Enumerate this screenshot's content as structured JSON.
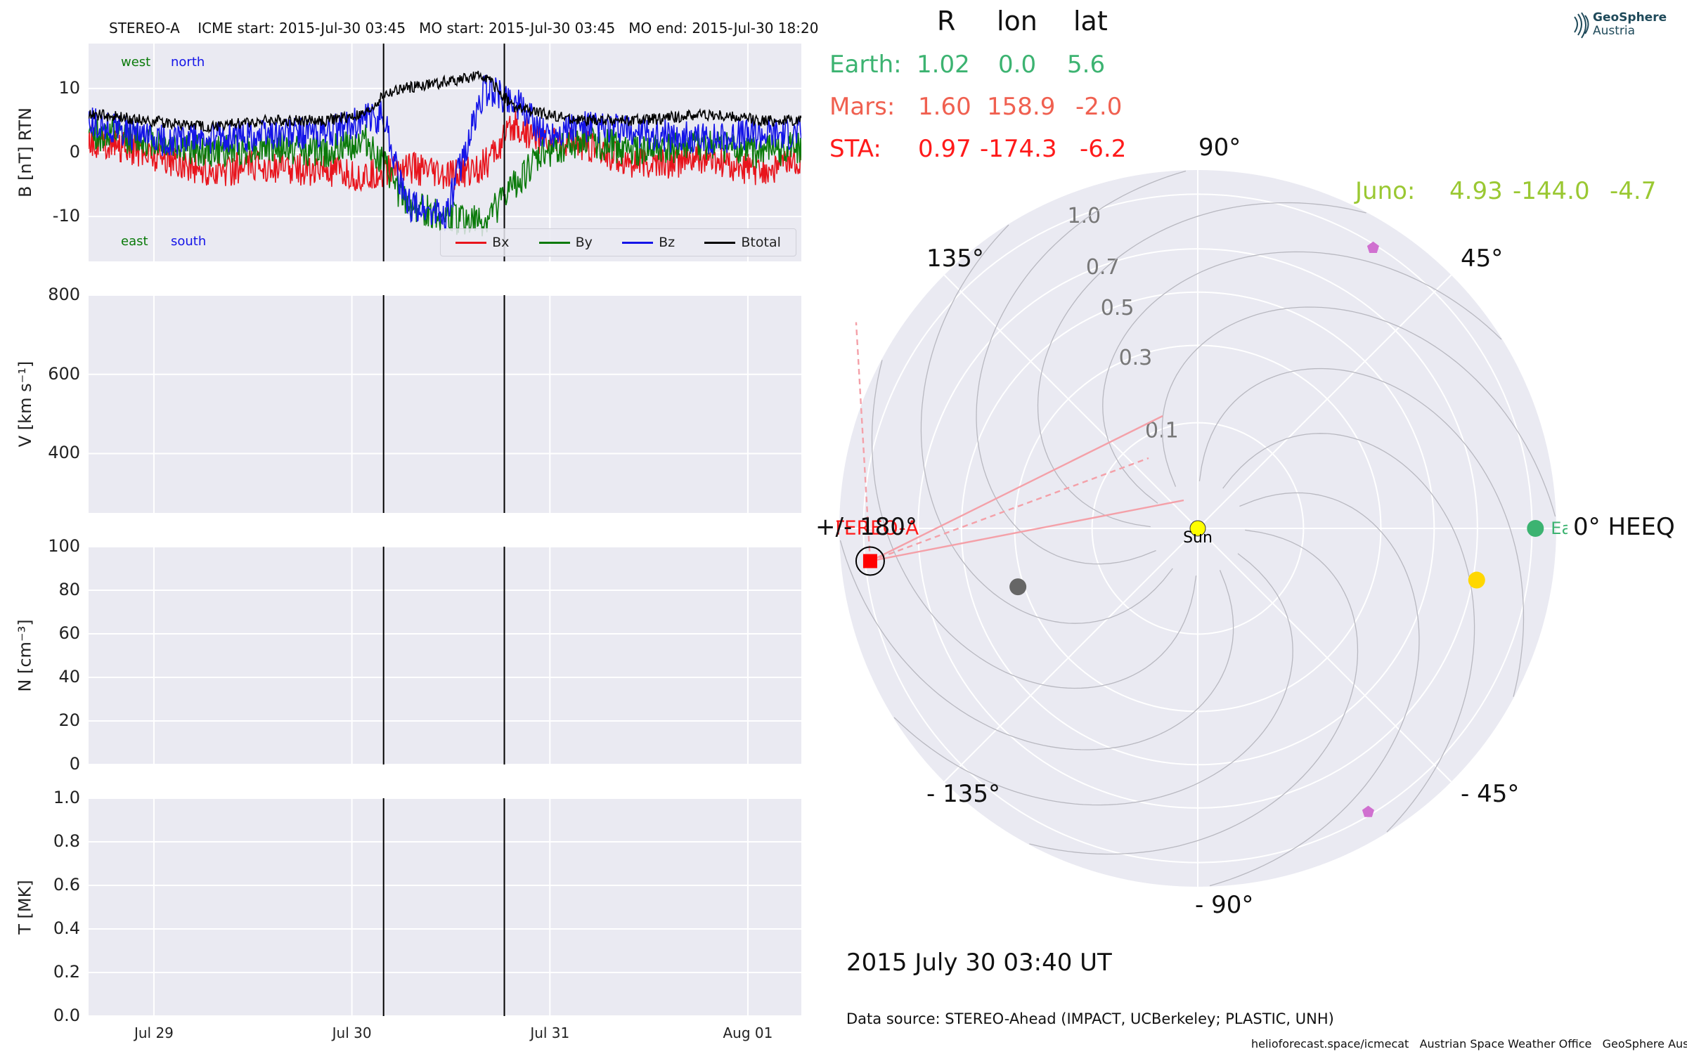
{
  "header": {
    "title": "STEREO-A    ICME start: 2015-Jul-30 03:45   MO start: 2015-Jul-30 03:45   MO end: 2015-Jul-30 18:20"
  },
  "logo": {
    "line1": "GeoSphere",
    "line2": "Austria"
  },
  "colors": {
    "bx": "#e8141c",
    "by": "#0a7a0a",
    "bz": "#1414e8",
    "btotal": "#000000",
    "earth": "#3cb371",
    "mars": "#f06050",
    "sta": "#ff1a1a",
    "juno": "#9ac832",
    "panel_bg": "#eaeaf2"
  },
  "chart_data": [
    {
      "type": "line",
      "panel": "magnetic-field",
      "ylabel": "B [nT] RTN",
      "ylim": [
        -17,
        17
      ],
      "yticks": [
        10,
        0,
        -10
      ],
      "xlim": [
        0,
        3.6
      ],
      "x_ticks": [
        {
          "x": 0.33,
          "label": "Jul 29"
        },
        {
          "x": 1.33,
          "label": "Jul 30"
        },
        {
          "x": 2.33,
          "label": "Jul 31"
        },
        {
          "x": 3.33,
          "label": "Aug 01"
        }
      ],
      "event_lines": [
        1.49,
        2.1
      ],
      "corner_labels": {
        "top_left_1": "west",
        "top_left_2": "north",
        "bottom_left_1": "east",
        "bottom_left_2": "south"
      },
      "legend": [
        "Bx",
        "By",
        "Bz",
        "Btotal"
      ],
      "series": [
        {
          "name": "Bx",
          "x": [
            0,
            0.3,
            0.6,
            0.9,
            1.2,
            1.4,
            1.49,
            1.6,
            1.8,
            2.0,
            2.15,
            2.3,
            2.5,
            2.8,
            3.1,
            3.4,
            3.6
          ],
          "values": [
            2,
            0,
            -3,
            -2,
            -3,
            -4,
            -3,
            -2,
            -4,
            -2,
            4,
            2,
            1,
            -2,
            -1,
            -3,
            -1
          ]
        },
        {
          "name": "By",
          "x": [
            0,
            0.3,
            0.6,
            0.9,
            1.2,
            1.4,
            1.49,
            1.6,
            1.8,
            2.0,
            2.15,
            2.3,
            2.5,
            2.8,
            3.1,
            3.4,
            3.6
          ],
          "values": [
            3,
            2,
            0,
            1,
            0,
            2,
            -2,
            -8,
            -10,
            -11,
            -5,
            0,
            2,
            0,
            1,
            0,
            1
          ]
        },
        {
          "name": "Bz",
          "x": [
            0,
            0.3,
            0.6,
            0.9,
            1.2,
            1.4,
            1.49,
            1.6,
            1.8,
            2.0,
            2.15,
            2.3,
            2.5,
            2.8,
            3.1,
            3.4,
            3.6
          ],
          "values": [
            5,
            2,
            2,
            3,
            3,
            5,
            6,
            -8,
            -10,
            10,
            8,
            3,
            4,
            3,
            2,
            3,
            3
          ]
        },
        {
          "name": "Btotal",
          "x": [
            0,
            0.3,
            0.6,
            0.9,
            1.2,
            1.4,
            1.49,
            1.6,
            1.8,
            2.0,
            2.15,
            2.3,
            2.5,
            2.8,
            3.1,
            3.4,
            3.6
          ],
          "values": [
            6,
            5,
            4,
            5,
            5,
            6,
            9,
            10,
            11,
            12,
            7,
            6,
            5,
            5,
            6,
            5,
            5
          ]
        }
      ]
    },
    {
      "type": "line",
      "panel": "velocity",
      "ylabel": "V [km s⁻¹]",
      "ylim": [
        250,
        800
      ],
      "yticks": [
        800,
        600,
        400
      ],
      "xlim": [
        0,
        3.6
      ],
      "event_lines": [
        1.49,
        2.1
      ],
      "series": []
    },
    {
      "type": "line",
      "panel": "density",
      "ylabel": "N [cm⁻³]",
      "ylim": [
        0,
        100
      ],
      "yticks": [
        100,
        80,
        60,
        40,
        20,
        0
      ],
      "xlim": [
        0,
        3.6
      ],
      "event_lines": [
        1.49,
        2.1
      ],
      "series": []
    },
    {
      "type": "line",
      "panel": "temperature",
      "ylabel": "T [MK]",
      "ylim": [
        0,
        1
      ],
      "yticks": [
        "1.0",
        "0.8",
        "0.6",
        "0.4",
        "0.2",
        "0.0"
      ],
      "xlim": [
        0,
        3.6
      ],
      "event_lines": [
        1.49,
        2.1
      ],
      "series": []
    },
    {
      "type": "scatter",
      "panel": "polar-orbit-plot",
      "coordinate_system": "0° HEEQ",
      "angle_labels": [
        "90°",
        "45°",
        "0° HEEQ",
        "- 45°",
        "- 90°",
        "- 135°",
        "+/- 180°",
        "135°"
      ],
      "radial_labels": [
        "0.1",
        "0.3",
        "0.5",
        "0.7",
        "1.0"
      ],
      "radial_values": [
        0.1,
        0.3,
        0.5,
        0.7,
        1.0
      ],
      "points": [
        {
          "name": "Sun",
          "r": 0.0,
          "lon": 0.0,
          "color": "#ffff00"
        },
        {
          "name": "Earth",
          "r": 1.02,
          "lon": 0.0,
          "color": "#3cb371"
        },
        {
          "name": "STEREO-A",
          "r": 0.97,
          "lon": -174.3,
          "color": "#ff0000"
        },
        {
          "name": "",
          "r": 0.72,
          "lon": -10.5,
          "color": "#ffd700"
        },
        {
          "name": "",
          "r": 0.32,
          "lon": -162,
          "color": "#666666"
        },
        {
          "name": "",
          "r": 0.98,
          "lon": 58,
          "color": "#d070d0"
        },
        {
          "name": "",
          "r": 0.98,
          "lon": -59,
          "color": "#d070d0"
        }
      ]
    }
  ],
  "positions": {
    "headers": [
      "R",
      "lon",
      "lat"
    ],
    "rows": [
      {
        "name": "Earth:",
        "r": "1.02",
        "lon": "0.0",
        "lat": "5.6",
        "color": "#3cb371"
      },
      {
        "name": "Mars:",
        "r": "1.60",
        "lon": "158.9",
        "lat": "-2.0",
        "color": "#f06050"
      },
      {
        "name": "STA:",
        "r": "0.97",
        "lon": "-174.3",
        "lat": "-6.2",
        "color": "#ff1a1a"
      }
    ],
    "juno": {
      "name": "Juno:",
      "r": "4.93",
      "lon": "-144.0",
      "lat": "-4.7",
      "color": "#9ac832"
    }
  },
  "footer": {
    "date": "2015 July 30  03:40 UT",
    "source": "Data source: STEREO-Ahead (IMPACT, UCBerkeley; PLASTIC, UNH)",
    "credits": "helioforecast.space/icmecat   Austrian Space Weather Office   GeoSphere Austria"
  }
}
